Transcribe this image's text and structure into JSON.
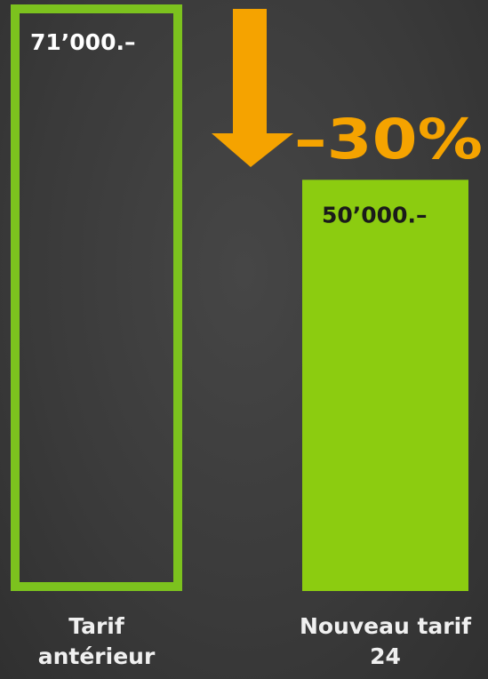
{
  "chart_data": {
    "type": "bar",
    "categories": [
      "Tarif antérieur",
      "Nouveau tarif 24"
    ],
    "values": [
      71000,
      50000
    ],
    "value_labels": [
      "71’000.–",
      "50’000.–"
    ],
    "colors": [
      "#7cc21e",
      "#8ccc10"
    ],
    "outlined": [
      true,
      false
    ],
    "annotation": "–30%",
    "annotation_color": "#f5a300"
  }
}
